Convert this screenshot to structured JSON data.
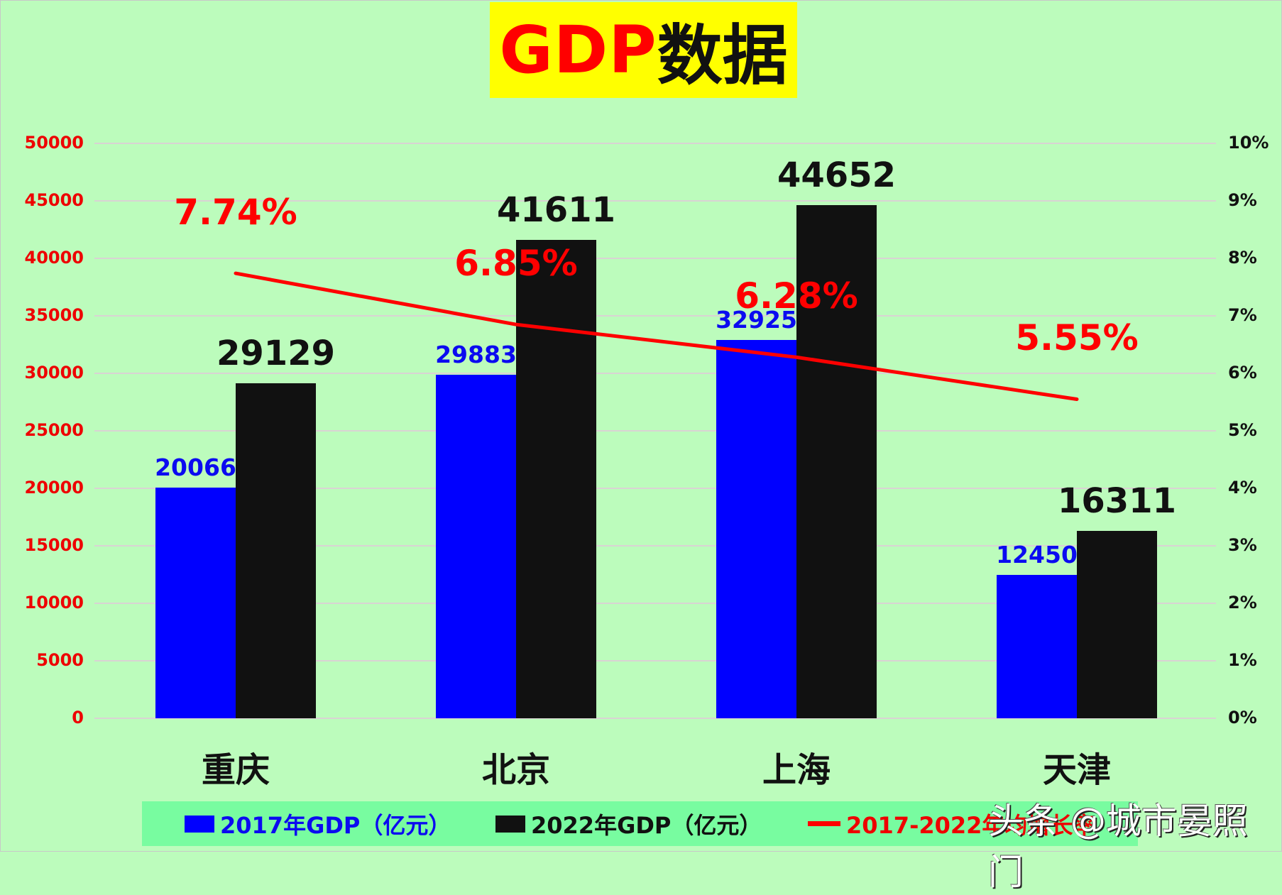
{
  "title": {
    "en": "GDP",
    "zh": "数据"
  },
  "chart_data": {
    "type": "bar",
    "title": "GDP数据",
    "categories": [
      "重庆",
      "北京",
      "上海",
      "天津"
    ],
    "series": [
      {
        "name": "2017年GDP（亿元）",
        "type": "bar",
        "color": "#0000ff",
        "values": [
          20066,
          29883,
          32925,
          12450
        ],
        "axis": "left"
      },
      {
        "name": "2022年GDP（亿元）",
        "type": "bar",
        "color": "#111111",
        "values": [
          29129,
          41611,
          44652,
          16311
        ],
        "axis": "left"
      },
      {
        "name": "2017-2022年均增长率",
        "type": "line",
        "color": "#ff0000",
        "values": [
          7.74,
          6.85,
          6.28,
          5.55
        ],
        "unit": "%",
        "axis": "right"
      }
    ],
    "ylim": [
      0,
      50000
    ],
    "y2lim": [
      0,
      10
    ],
    "yticks": [
      "0",
      "5000",
      "10000",
      "15000",
      "20000",
      "25000",
      "30000",
      "35000",
      "40000",
      "45000",
      "50000"
    ],
    "y2ticks": [
      "0%",
      "1%",
      "2%",
      "3%",
      "4%",
      "5%",
      "6%",
      "7%",
      "8%",
      "9%",
      "10%"
    ],
    "grid": true,
    "legend_position": "bottom",
    "xlabel": "",
    "ylabel": "",
    "y2label": ""
  },
  "labels": {
    "s1": [
      "20066",
      "29883",
      "32925",
      "12450"
    ],
    "s2": [
      "29129",
      "41611",
      "44652",
      "16311"
    ],
    "rate": [
      "7.74%",
      "6.85%",
      "6.28%",
      "5.55%"
    ]
  },
  "legend": {
    "s1": "2017年GDP（亿元）",
    "s2": "2022年GDP（亿元）",
    "s3": "2017-2022年均增长率"
  },
  "colors": {
    "background": "#bcfcbc",
    "legend_bg": "#78fca0",
    "title_bg": "#ffff00",
    "s1": "#0000ff",
    "s2": "#111111",
    "line": "#ff0000"
  },
  "watermark": "头条 @城市晏照门"
}
